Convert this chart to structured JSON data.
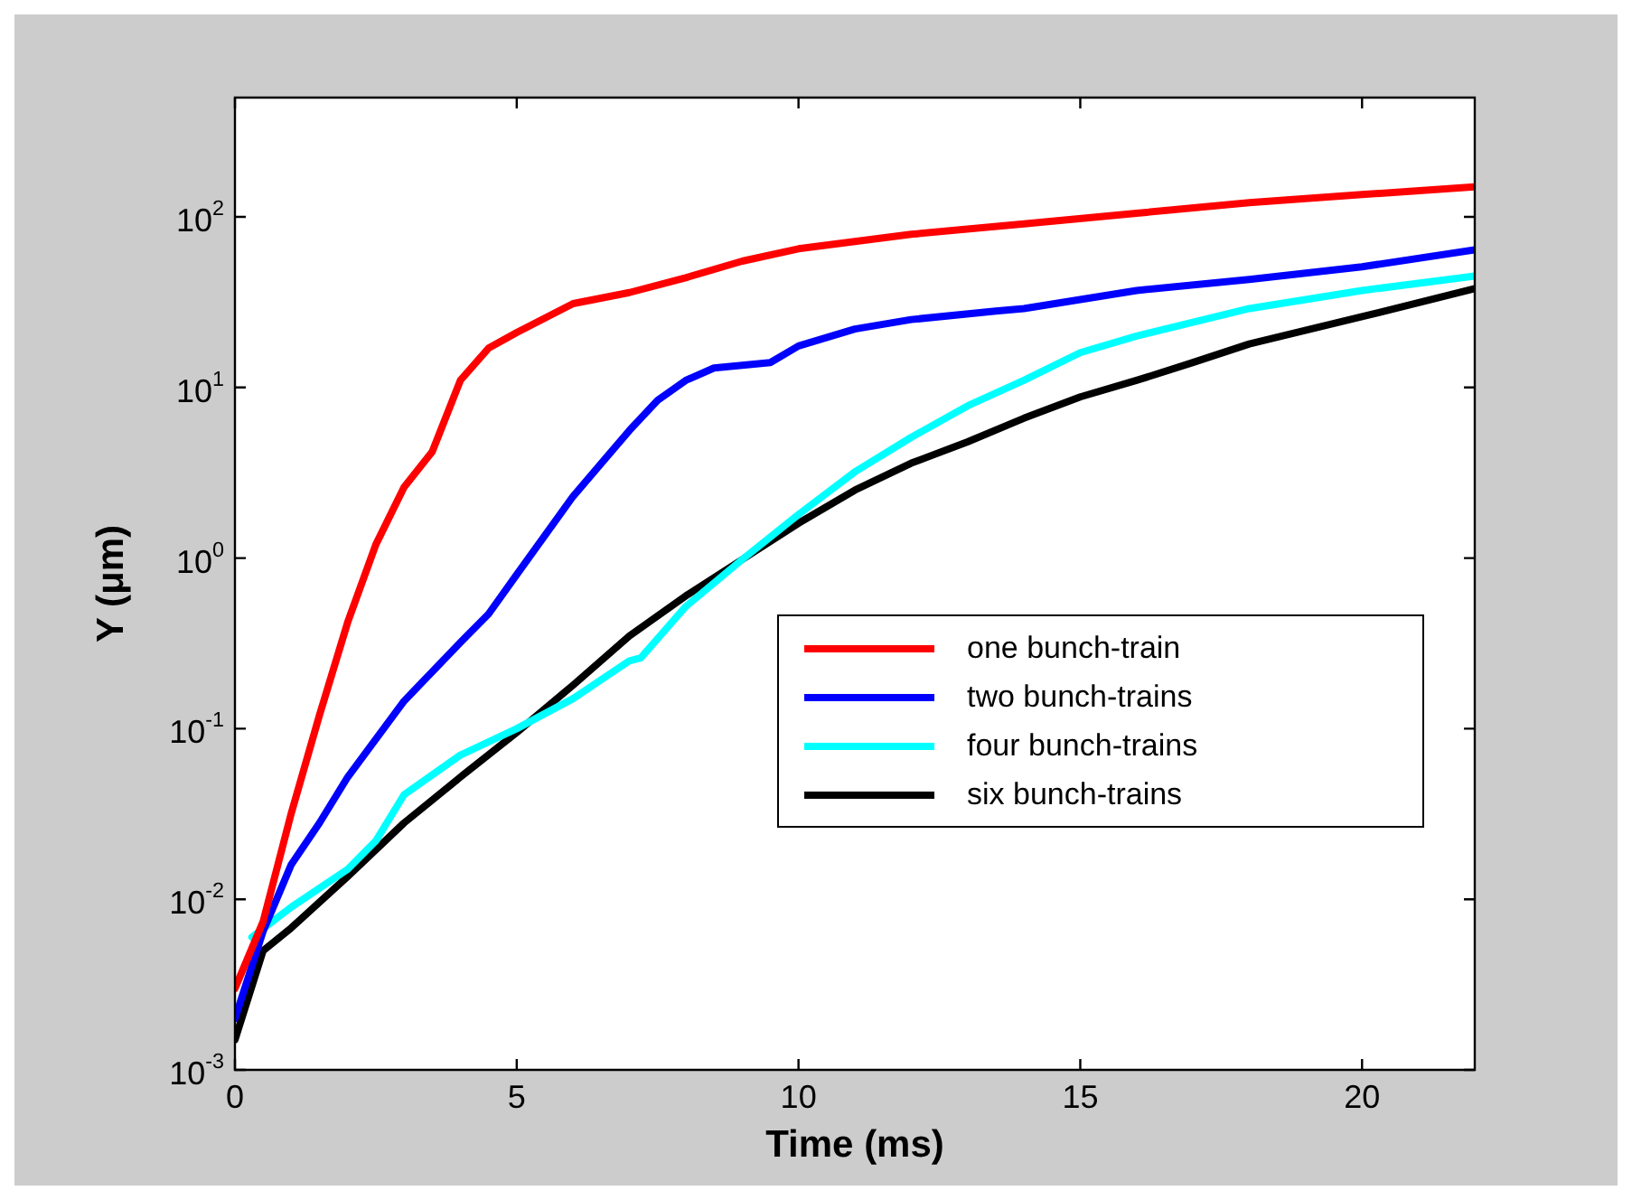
{
  "chart_data": {
    "type": "line",
    "xlabel": "Time (ms)",
    "ylabel": "Y (μm)",
    "log": "y",
    "grid": false,
    "legend": "center right",
    "marker": "none",
    "line_style": "solid",
    "xlim": [
      0,
      22
    ],
    "xticks": [
      0,
      5,
      10,
      15,
      20
    ],
    "ylim": [
      0.001,
      500
    ],
    "yticks": [
      {
        "value": 0.001,
        "label": "10$^{-3}$"
      },
      {
        "value": 0.01,
        "label": "10$^{-2}$"
      },
      {
        "value": 0.1,
        "label": "10$^{-1}$"
      },
      {
        "value": 1,
        "label": "10$^{0}$"
      },
      {
        "value": 10,
        "label": "10$^{1}$"
      },
      {
        "value": 100,
        "label": "10$^{2}$"
      }
    ],
    "series": [
      {
        "name": "one bunch-train",
        "color": "#ff0000",
        "x": [
          0,
          0.5,
          1,
          1.5,
          2,
          2.5,
          3,
          3.5,
          4,
          4.5,
          5,
          6,
          7,
          8,
          9,
          10,
          12,
          14,
          16,
          18,
          20,
          22
        ],
        "values": [
          0.003,
          0.0074,
          0.032,
          0.12,
          0.42,
          1.2,
          2.6,
          4.2,
          11,
          17,
          21,
          31,
          36,
          44,
          55,
          65,
          79,
          91,
          105,
          121,
          135,
          150
        ]
      },
      {
        "name": "two bunch-trains",
        "color": "#0000ff",
        "x": [
          0,
          0.5,
          1,
          1.5,
          2,
          3,
          4,
          4.5,
          5,
          6,
          7,
          7.5,
          8,
          8.5,
          9.5,
          10,
          11,
          12,
          13.5,
          14,
          16,
          18,
          20,
          22
        ],
        "values": [
          0.002,
          0.0065,
          0.016,
          0.028,
          0.052,
          0.145,
          0.32,
          0.47,
          0.8,
          2.3,
          5.6,
          8.4,
          11,
          13,
          14,
          17.5,
          22,
          25,
          28,
          29,
          37,
          43,
          51,
          64
        ]
      },
      {
        "name": "four bunch-trains",
        "color": "#00ffff",
        "x": [
          0.3,
          1,
          2,
          2.5,
          3,
          4,
          5,
          6,
          7,
          7.2,
          8,
          9,
          10,
          11,
          12,
          13,
          14,
          15,
          16,
          18,
          20,
          22
        ],
        "values": [
          0.006,
          0.009,
          0.015,
          0.022,
          0.041,
          0.07,
          0.1,
          0.15,
          0.25,
          0.26,
          0.52,
          0.98,
          1.8,
          3.2,
          5.1,
          7.8,
          11,
          16,
          20,
          29,
          37,
          45
        ]
      },
      {
        "name": "six bunch-trains",
        "color": "#000000",
        "x": [
          0,
          0.2,
          0.5,
          1,
          2,
          3,
          4,
          5,
          6,
          7,
          8,
          9,
          10,
          11,
          12,
          13,
          14,
          15,
          16,
          17,
          18,
          20,
          22
        ],
        "values": [
          0.0015,
          null,
          0.005,
          0.0068,
          0.0136,
          0.028,
          0.052,
          0.095,
          0.18,
          0.35,
          0.6,
          0.98,
          1.6,
          2.5,
          3.6,
          4.8,
          6.6,
          8.8,
          11,
          14,
          18,
          26,
          38
        ]
      }
    ]
  }
}
